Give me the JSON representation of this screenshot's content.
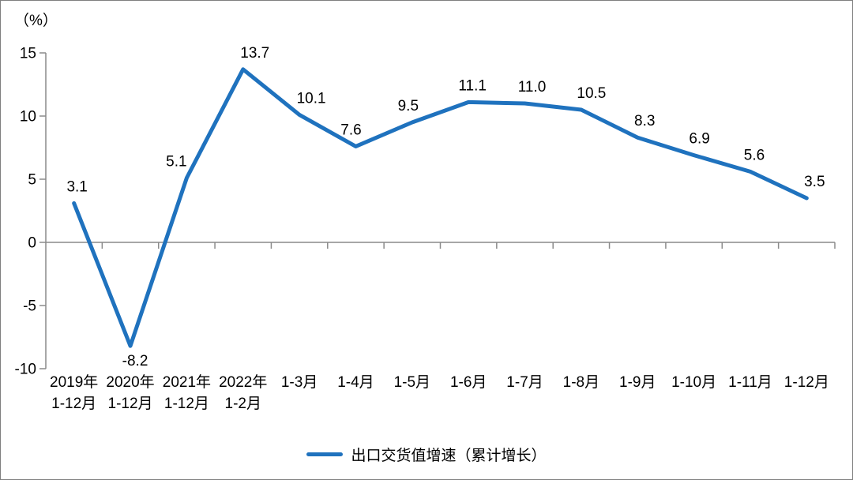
{
  "chart_data": {
    "type": "line",
    "title": "",
    "unit_label": "（%）",
    "categories": [
      [
        "2019年",
        "1-12月"
      ],
      [
        "2020年",
        "1-12月"
      ],
      [
        "2021年",
        "1-12月"
      ],
      [
        "2022年",
        "1-2月"
      ],
      [
        "1-3月"
      ],
      [
        "1-4月"
      ],
      [
        "1-5月"
      ],
      [
        "1-6月"
      ],
      [
        "1-7月"
      ],
      [
        "1-8月"
      ],
      [
        "1-9月"
      ],
      [
        "1-10月"
      ],
      [
        "1-11月"
      ],
      [
        "1-12月"
      ]
    ],
    "series": [
      {
        "name": "出口交货值增速（累计增长）",
        "values": [
          3.1,
          -8.2,
          5.1,
          13.7,
          10.1,
          7.6,
          9.5,
          11.1,
          11.0,
          10.5,
          8.3,
          6.9,
          5.6,
          3.5
        ],
        "color": "#1F72BE"
      }
    ],
    "y_ticks": [
      15,
      10,
      5,
      0,
      -5,
      -10
    ],
    "ylim": [
      -10,
      15
    ],
    "grid": false,
    "data_labels_shown": true,
    "legend_position": "bottom",
    "axis_color": "#8a8a8a",
    "label_color": "#000000"
  }
}
